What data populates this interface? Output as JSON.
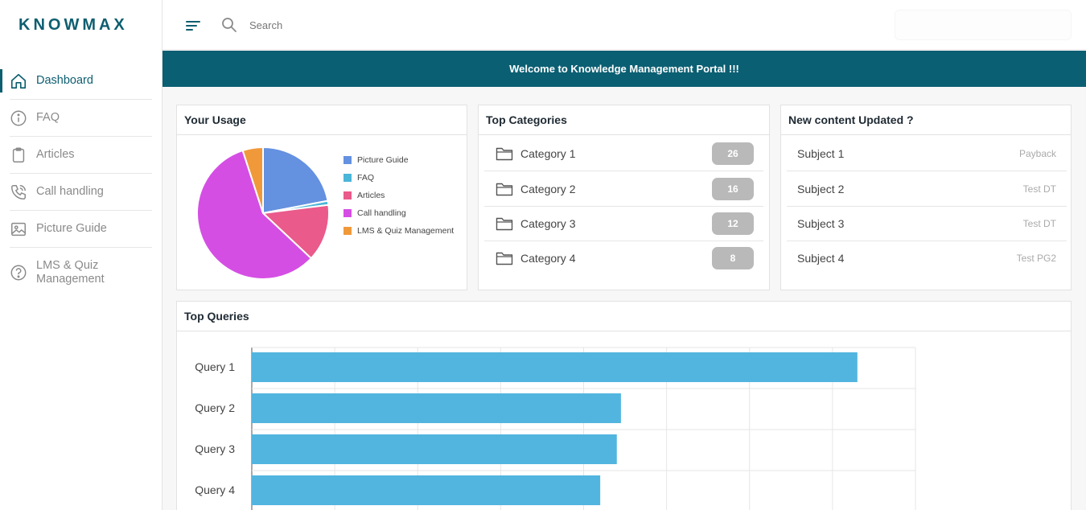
{
  "app": {
    "logo": "KNOWMAX"
  },
  "sidebar": {
    "items": [
      {
        "label": "Dashboard",
        "icon": "home-icon",
        "active": true
      },
      {
        "label": "FAQ",
        "icon": "info-icon"
      },
      {
        "label": "Articles",
        "icon": "clipboard-icon"
      },
      {
        "label": "Call handling",
        "icon": "phone-icon"
      },
      {
        "label": "Picture Guide",
        "icon": "image-icon"
      },
      {
        "label": "LMS & Quiz Management",
        "icon": "question-icon"
      }
    ]
  },
  "topbar": {
    "search_placeholder": "Search"
  },
  "banner": {
    "text": "Welcome to Knowledge Management Portal !!!"
  },
  "usage": {
    "title": "Your Usage",
    "chart_data": {
      "type": "pie",
      "slices": [
        {
          "label": "Picture Guide",
          "value": 22,
          "color": "#6491e0"
        },
        {
          "label": "FAQ",
          "value": 1,
          "color": "#4ab6d8"
        },
        {
          "label": "Articles",
          "value": 14,
          "color": "#ea5a8a"
        },
        {
          "label": "Call handling",
          "value": 58,
          "color": "#d54ee4"
        },
        {
          "label": "LMS & Quiz Management",
          "value": 5,
          "color": "#f0993a"
        }
      ]
    }
  },
  "categories": {
    "title": "Top Categories",
    "items": [
      {
        "label": "Category 1",
        "count": "26"
      },
      {
        "label": "Category 2",
        "count": "16"
      },
      {
        "label": "Category 3",
        "count": "12"
      },
      {
        "label": "Category 4",
        "count": "8"
      }
    ]
  },
  "new_content": {
    "title": "New content Updated ?",
    "items": [
      {
        "subject": "Subject 1",
        "tag": "Payback"
      },
      {
        "subject": "Subject 2",
        "tag": "Test DT"
      },
      {
        "subject": "Subject 3",
        "tag": "Test DT"
      },
      {
        "subject": "Subject 4",
        "tag": "Test PG2"
      }
    ]
  },
  "queries": {
    "title": "Top Queries",
    "chart_data": {
      "type": "bar",
      "orientation": "horizontal",
      "categories": [
        "Query 1",
        "Query 2",
        "Query 3",
        "Query 4"
      ],
      "values": [
        7.3,
        4.45,
        4.4,
        4.2
      ],
      "xlim": [
        0,
        8
      ],
      "grid": true,
      "color": "#52b5df"
    }
  }
}
